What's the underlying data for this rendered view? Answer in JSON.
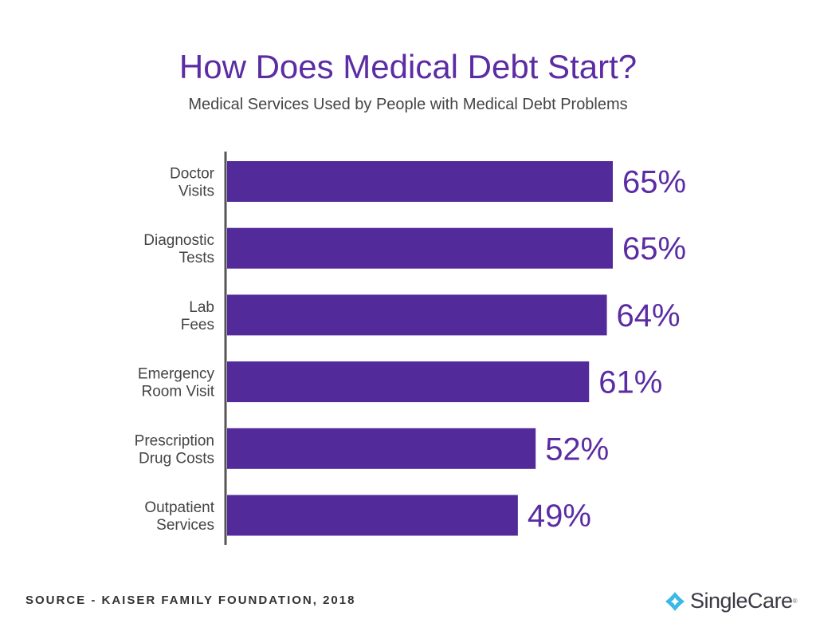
{
  "title": "How Does Medical Debt Start?",
  "subtitle": "Medical Services Used by People with Medical Debt Problems",
  "source": "SOURCE - KAISER FAMILY FOUNDATION, 2018",
  "logo": {
    "text": "SingleCare",
    "mark": "®"
  },
  "colors": {
    "bar": "#522a9a",
    "title": "#5b2ca3",
    "logo_icon": "#3bb8e8"
  },
  "chart_data": {
    "type": "bar",
    "orientation": "horizontal",
    "title": "How Does Medical Debt Start?",
    "subtitle": "Medical Services Used by People with Medical Debt Problems",
    "categories": [
      [
        "Doctor",
        "Visits"
      ],
      [
        "Diagnostic",
        "Tests"
      ],
      [
        "Lab",
        "Fees"
      ],
      [
        "Emergency",
        "Room Visit"
      ],
      [
        "Prescription",
        "Drug Costs"
      ],
      [
        "Outpatient",
        "Services"
      ]
    ],
    "values": [
      65,
      65,
      64,
      61,
      52,
      49
    ],
    "data_labels": [
      "65%",
      "65%",
      "64%",
      "61%",
      "52%",
      "49%"
    ],
    "unit": "%",
    "xlim": [
      0,
      100
    ],
    "grid": false
  }
}
